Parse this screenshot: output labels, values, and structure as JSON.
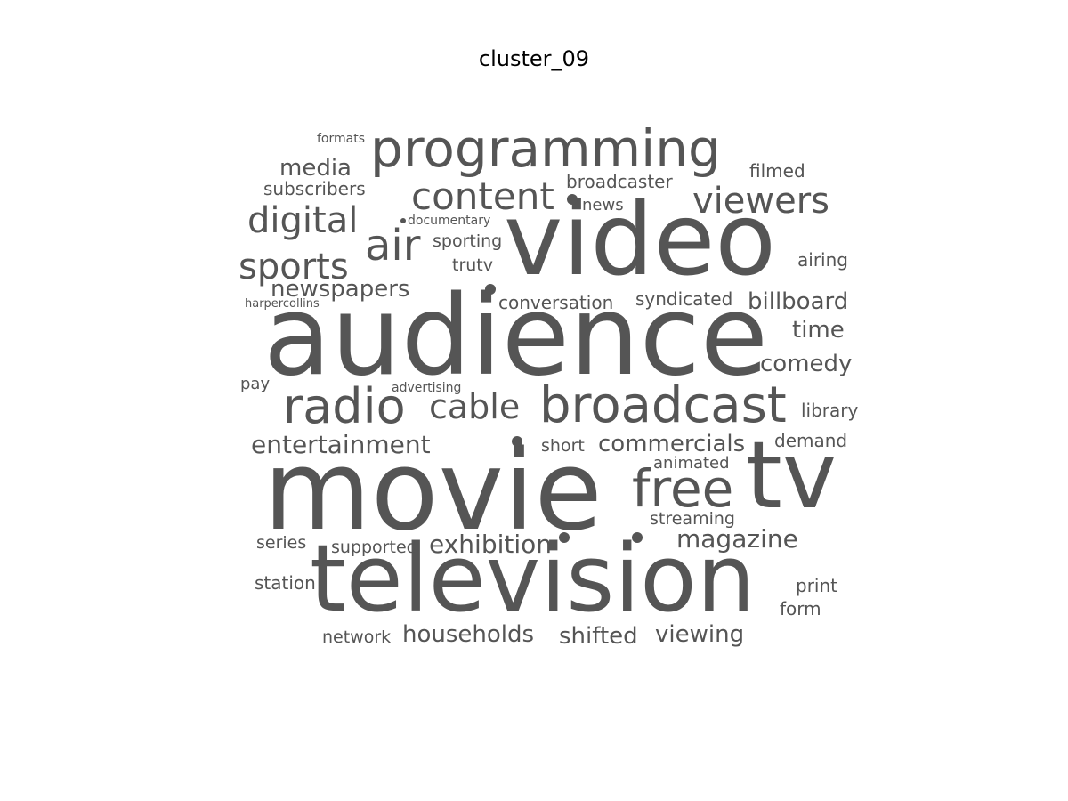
{
  "title": "cluster_09",
  "text_color": "#555555",
  "words": [
    "audience",
    "movie",
    "television",
    "video",
    "tv",
    "programming",
    "broadcast",
    "radio",
    "free",
    "content",
    "viewers",
    "digital",
    "sports",
    "air",
    "cable",
    "entertainment",
    "magazine",
    "exhibition",
    "households",
    "commercials",
    "media",
    "newspapers",
    "shifted",
    "viewing",
    "billboard",
    "comedy",
    "time",
    "conversation",
    "syndicated",
    "broadcaster",
    "subscribers",
    "filmed",
    "airing",
    "library",
    "demand",
    "sporting",
    "streaming",
    "print",
    "form",
    "station",
    "network",
    "series",
    "supported",
    "short",
    "animated",
    "trutv",
    "news",
    "formats",
    "pay",
    "advertising",
    "documentary",
    "harpercollins"
  ]
}
